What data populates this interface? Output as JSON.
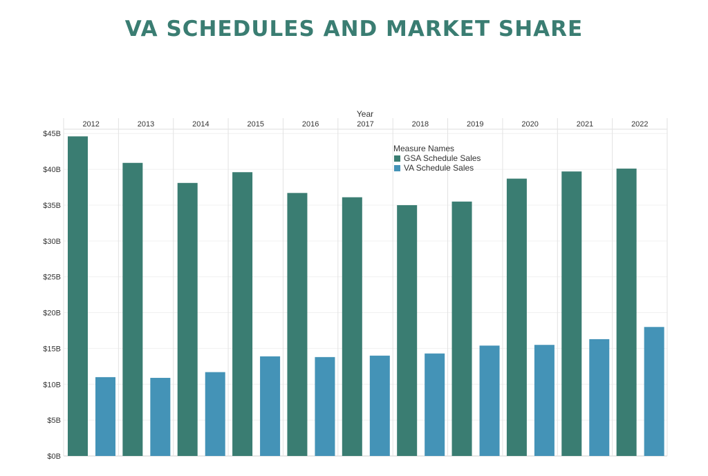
{
  "page": {
    "title": "VA SCHEDULES AND MARKET SHARE"
  },
  "chart_data": {
    "type": "bar",
    "title": "VA SCHEDULES AND MARKET SHARE",
    "column_header": "Year",
    "categories": [
      "2012",
      "2013",
      "2014",
      "2015",
      "2016",
      "2017",
      "2018",
      "2019",
      "2020",
      "2021",
      "2022"
    ],
    "series": [
      {
        "name": "GSA Schedule Sales",
        "color": "#3a7d72",
        "values": [
          44.6,
          40.9,
          38.1,
          39.6,
          36.7,
          36.1,
          35.0,
          35.5,
          38.7,
          39.7,
          40.1
        ]
      },
      {
        "name": "VA Schedule Sales",
        "color": "#4493b7",
        "values": [
          11.0,
          10.9,
          11.7,
          13.9,
          13.8,
          14.0,
          14.3,
          15.4,
          15.5,
          16.3,
          18.0
        ]
      }
    ],
    "yaxis": {
      "ticks": [
        0,
        5,
        10,
        15,
        20,
        25,
        30,
        35,
        40,
        45
      ],
      "tick_labels": [
        "$0B",
        "$5B",
        "$10B",
        "$15B",
        "$20B",
        "$25B",
        "$30B",
        "$35B",
        "$40B",
        "$45B"
      ],
      "ylim": [
        0,
        45.6
      ]
    },
    "legend": {
      "title": "Measure Names",
      "placement": "top-center, inside plot",
      "items": [
        "GSA Schedule Sales",
        "VA Schedule Sales"
      ]
    },
    "grid": true,
    "xlabel": "",
    "ylabel": ""
  }
}
